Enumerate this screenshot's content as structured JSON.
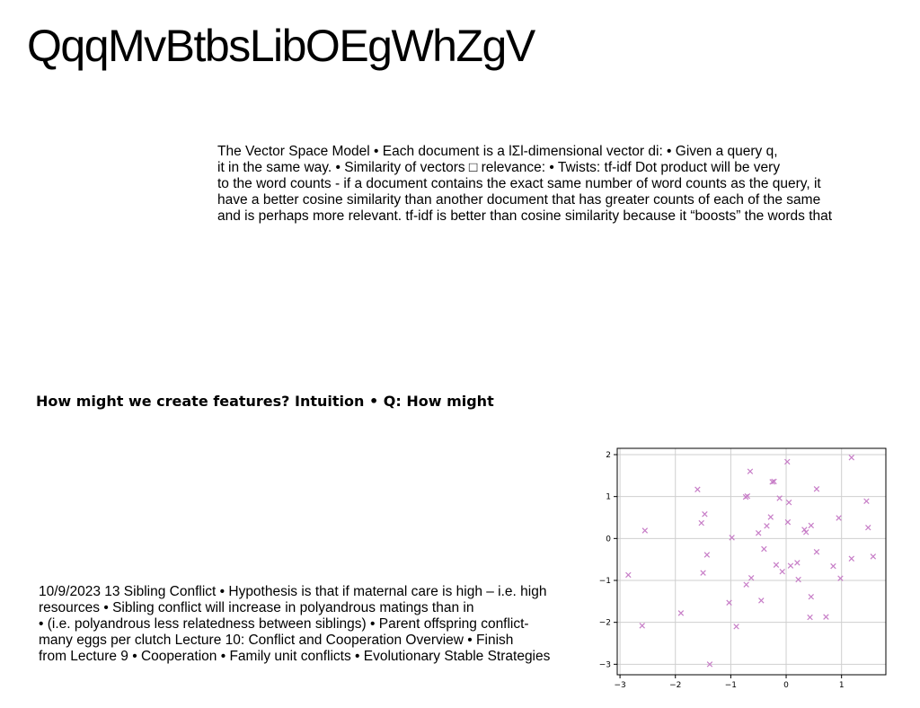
{
  "title": "QqqMvBtbsLibOEgWhZgV",
  "paragraph1": [
    "The Vector Space Model • Each document is a lΣl-dimensional vector di: • Given a query q,",
    "it in the same way. • Similarity of vectors □ relevance: • Twists:  tf-idf Dot product will be very",
    "to the word counts - if a document contains the exact same number of word counts as the query, it",
    "have a better cosine similarity than another document that has greater counts of each of the same",
    "and is perhaps more relevant. tf-idf is better than cosine similarity because it “boosts” the words that"
  ],
  "heading": "How might we create features? Intuition • Q: How might",
  "paragraph2": [
    "10/9/2023 13 Sibling Conflict • Hypothesis is that if maternal care is high – i.e. high",
    "resources • Sibling conflict will increase in polyandrous matings than in",
    "• (i.e. polyandrous less relatedness between siblings) • Parent offspring conflict-",
    "many eggs per clutch Lecture 10: Conflict and Cooperation Overview • Finish",
    "from Lecture 9 • Cooperation • Family unit conflicts • Evolutionary Stable Strategies"
  ],
  "chart_data": {
    "type": "scatter",
    "marker": "x",
    "color": "#c77dc7",
    "grid": true,
    "xlim": [
      -3.05,
      1.8
    ],
    "ylim": [
      -3.25,
      2.15
    ],
    "xticks": [
      -3,
      -2,
      -1,
      0,
      1
    ],
    "yticks": [
      2,
      1,
      0,
      -1,
      -2,
      -3
    ],
    "tick_labels_x": [
      "−3",
      "−2",
      "−1",
      "0",
      "1"
    ],
    "tick_labels_y": [
      "2",
      "1",
      "0",
      "−1",
      "−2",
      "−3"
    ],
    "points": [
      {
        "x": -2.85,
        "y": -0.87
      },
      {
        "x": -2.55,
        "y": 0.19
      },
      {
        "x": -2.6,
        "y": -2.08
      },
      {
        "x": -1.9,
        "y": -1.78
      },
      {
        "x": -1.6,
        "y": 1.17
      },
      {
        "x": -1.53,
        "y": 0.37
      },
      {
        "x": -1.47,
        "y": 0.58
      },
      {
        "x": -1.43,
        "y": -0.39
      },
      {
        "x": -1.5,
        "y": -0.82
      },
      {
        "x": -1.38,
        "y": -3.0
      },
      {
        "x": -1.03,
        "y": -1.53
      },
      {
        "x": -0.98,
        "y": 0.02
      },
      {
        "x": -0.9,
        "y": -2.1
      },
      {
        "x": -0.73,
        "y": 0.99
      },
      {
        "x": -0.7,
        "y": 1.01
      },
      {
        "x": -0.65,
        "y": 1.6
      },
      {
        "x": -0.63,
        "y": -0.94
      },
      {
        "x": -0.72,
        "y": -1.1
      },
      {
        "x": -0.5,
        "y": 0.13
      },
      {
        "x": -0.45,
        "y": -1.48
      },
      {
        "x": -0.4,
        "y": -0.25
      },
      {
        "x": -0.35,
        "y": 0.3
      },
      {
        "x": -0.28,
        "y": 0.51
      },
      {
        "x": -0.25,
        "y": 1.35
      },
      {
        "x": -0.22,
        "y": 1.36
      },
      {
        "x": -0.18,
        "y": -0.63
      },
      {
        "x": -0.12,
        "y": 0.96
      },
      {
        "x": -0.07,
        "y": -0.79
      },
      {
        "x": 0.02,
        "y": 1.83
      },
      {
        "x": 0.03,
        "y": 0.39
      },
      {
        "x": 0.05,
        "y": 0.86
      },
      {
        "x": 0.08,
        "y": -0.65
      },
      {
        "x": 0.2,
        "y": -0.58
      },
      {
        "x": 0.22,
        "y": -0.98
      },
      {
        "x": 0.33,
        "y": 0.21
      },
      {
        "x": 0.36,
        "y": 0.15
      },
      {
        "x": 0.45,
        "y": 0.31
      },
      {
        "x": 0.45,
        "y": -1.39
      },
      {
        "x": 0.43,
        "y": -1.88
      },
      {
        "x": 0.55,
        "y": 1.18
      },
      {
        "x": 0.55,
        "y": -0.32
      },
      {
        "x": 0.72,
        "y": -1.87
      },
      {
        "x": 0.85,
        "y": -0.66
      },
      {
        "x": 0.95,
        "y": 0.49
      },
      {
        "x": 0.98,
        "y": -0.95
      },
      {
        "x": 1.18,
        "y": 1.93
      },
      {
        "x": 1.18,
        "y": -0.48
      },
      {
        "x": 1.45,
        "y": 0.89
      },
      {
        "x": 1.48,
        "y": 0.26
      },
      {
        "x": 1.57,
        "y": -0.43
      }
    ]
  }
}
